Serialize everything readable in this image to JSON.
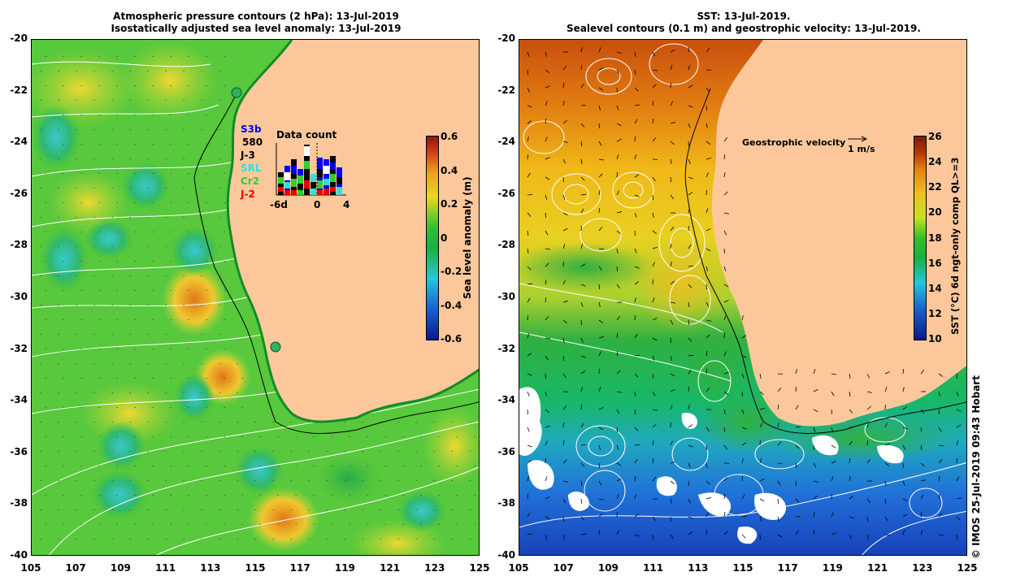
{
  "left_panel": {
    "title_line1": "Atmospheric pressure contours (2 hPa): 13-Jul-2019",
    "title_line2": "Isostatically adjusted sea level anomaly: 13-Jul-2019",
    "colorbar": {
      "label": "Sea level anomaly (m)",
      "ticks": [
        "0.6",
        "0.4",
        "0.2",
        "0",
        "-0.2",
        "-0.4",
        "-0.6"
      ],
      "colors": [
        "#0a1a8a",
        "#1a5fd0",
        "#22c8d8",
        "#18b040",
        "#30c030",
        "#e8d820",
        "#f0a020",
        "#d04010",
        "#8a1a0a"
      ]
    },
    "data_count": {
      "title": "Data count",
      "missions": [
        {
          "name": "S3b",
          "color": "#0000ff"
        },
        {
          "name": "580",
          "color": "#000000"
        },
        {
          "name": "J-3",
          "color": "#000000"
        },
        {
          "name": "SRL",
          "color": "#33dddd"
        },
        {
          "name": "Cr2",
          "color": "#33cc33"
        },
        {
          "name": "J-2",
          "color": "#ee0000"
        }
      ],
      "axis_labels": [
        "-6d",
        "0",
        "4"
      ]
    }
  },
  "right_panel": {
    "title_line1": "SST: 13-Jul-2019.",
    "title_line2": "Sealevel contours (0.1 m) and geostrophic velocity: 13-Jul-2019.",
    "colorbar": {
      "label": "SST (°C) 6d ngt-only comp QL>=3",
      "ticks": [
        "26",
        "24",
        "22",
        "20",
        "18",
        "16",
        "14",
        "12",
        "10"
      ],
      "colors": [
        "#0a1a8a",
        "#1a5fd0",
        "#22c8d8",
        "#18b040",
        "#30c030",
        "#c8e020",
        "#f0c020",
        "#e08010",
        "#b03a0a",
        "#7a1a0a"
      ]
    },
    "velocity_legend": {
      "label": "Geostrophic velocity",
      "scale": "1 m/s"
    }
  },
  "axes": {
    "lat_labels": [
      "-20",
      "-22",
      "-24",
      "-26",
      "-28",
      "-30",
      "-32",
      "-34",
      "-36",
      "-38",
      "-40"
    ],
    "lon_labels": [
      "105",
      "107",
      "109",
      "111",
      "113",
      "115",
      "117",
      "119",
      "121",
      "123",
      "125"
    ]
  },
  "credit": "© IMOS 25-Jul-2019 09:43 Hobart",
  "colors": {
    "land": "#fcc89b",
    "coast_line": "#000000",
    "contour": "#ffffff"
  }
}
